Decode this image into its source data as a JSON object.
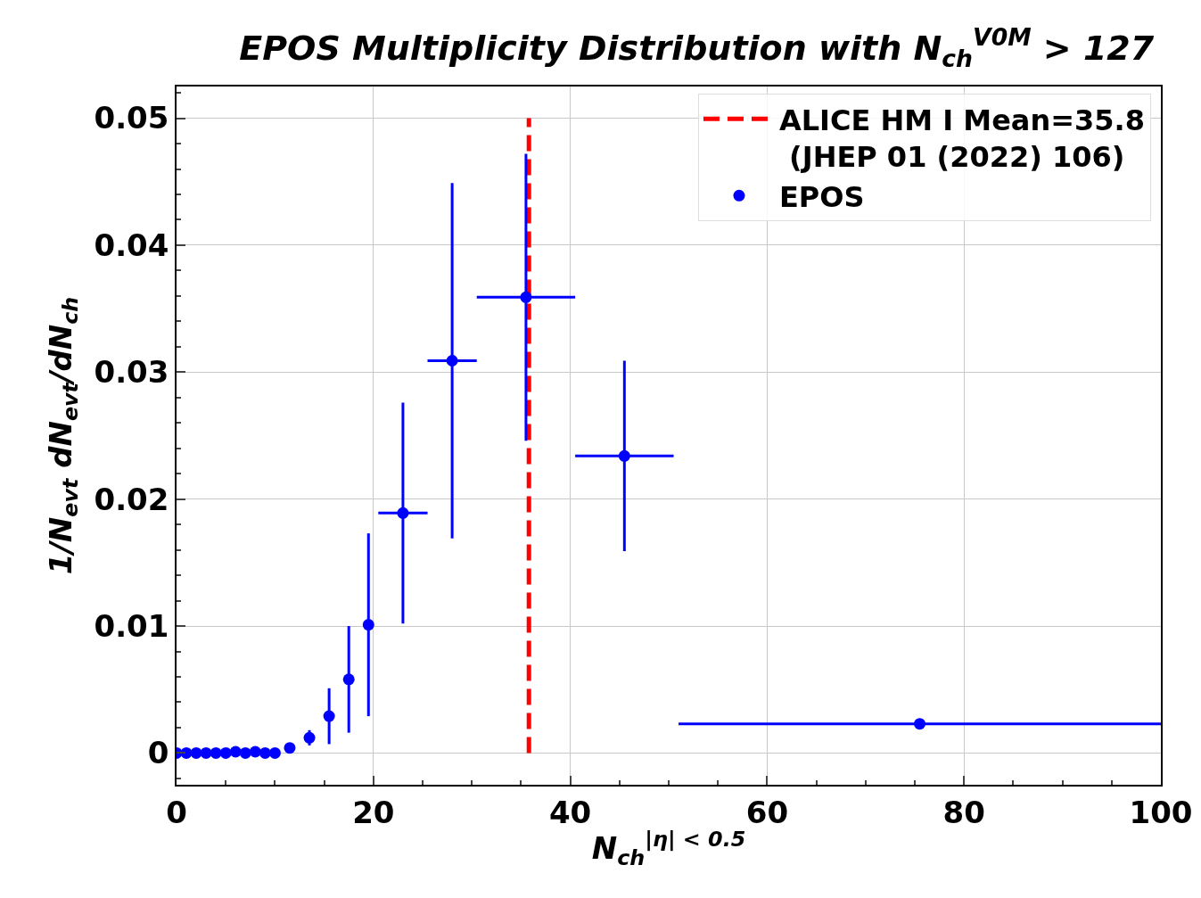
{
  "chart_data": {
    "type": "scatter",
    "title": "EPOS Multiplicity Distribution with N$_{ch}$$^{V0M}$ > 127",
    "xlabel": "N$_{ch}$$^{|η| < 0.5}$",
    "ylabel": "1/N$_{evt}$ dN$_{evt}$/dN$_{ch}$",
    "x": [
      0,
      1,
      2,
      3,
      4,
      5,
      6,
      7,
      8,
      9,
      10,
      11.5,
      13.5,
      15.5,
      17.5,
      19.5,
      23,
      28,
      35.5,
      45.5,
      75.5
    ],
    "series": [
      {
        "type": "line",
        "name": "ALICE HM I Mean=35.8\n (JHEP 01 (2022) 106)",
        "color": "#ff0000",
        "line_style": "dashed",
        "x": [
          35.8,
          35.8
        ],
        "values": [
          0,
          0.05
        ]
      },
      {
        "name": "EPOS",
        "color": "#0000ff",
        "marker": "circle",
        "values": [
          0,
          0,
          0,
          0,
          0,
          0,
          0.0001,
          0,
          0.0001,
          0,
          0,
          0.0004,
          0.0012,
          0.0029,
          0.0058,
          0.0101,
          0.0189,
          0.0309,
          0.0359,
          0.0234,
          0.0023
        ],
        "errors": [
          null,
          null,
          null,
          null,
          null,
          null,
          null,
          null,
          null,
          null,
          null,
          null,
          0.0006,
          0.0022,
          0.0042,
          0.0072,
          0.0087,
          0.014,
          0.0113,
          0.0075,
          null
        ],
        "xerrors": [
          null,
          null,
          null,
          null,
          null,
          null,
          null,
          null,
          null,
          null,
          null,
          null,
          null,
          null,
          null,
          null,
          2.5,
          2.5,
          5,
          5,
          24.5
        ]
      }
    ],
    "xlim": [
      0,
      100
    ],
    "xticks": [
      0,
      20,
      40,
      60,
      80,
      100
    ],
    "ylim": [
      -0.0025,
      0.0525
    ],
    "yticks": [
      0,
      0.01,
      0.02,
      0.03,
      0.04,
      0.05
    ],
    "grid": true,
    "legend": "top right"
  }
}
